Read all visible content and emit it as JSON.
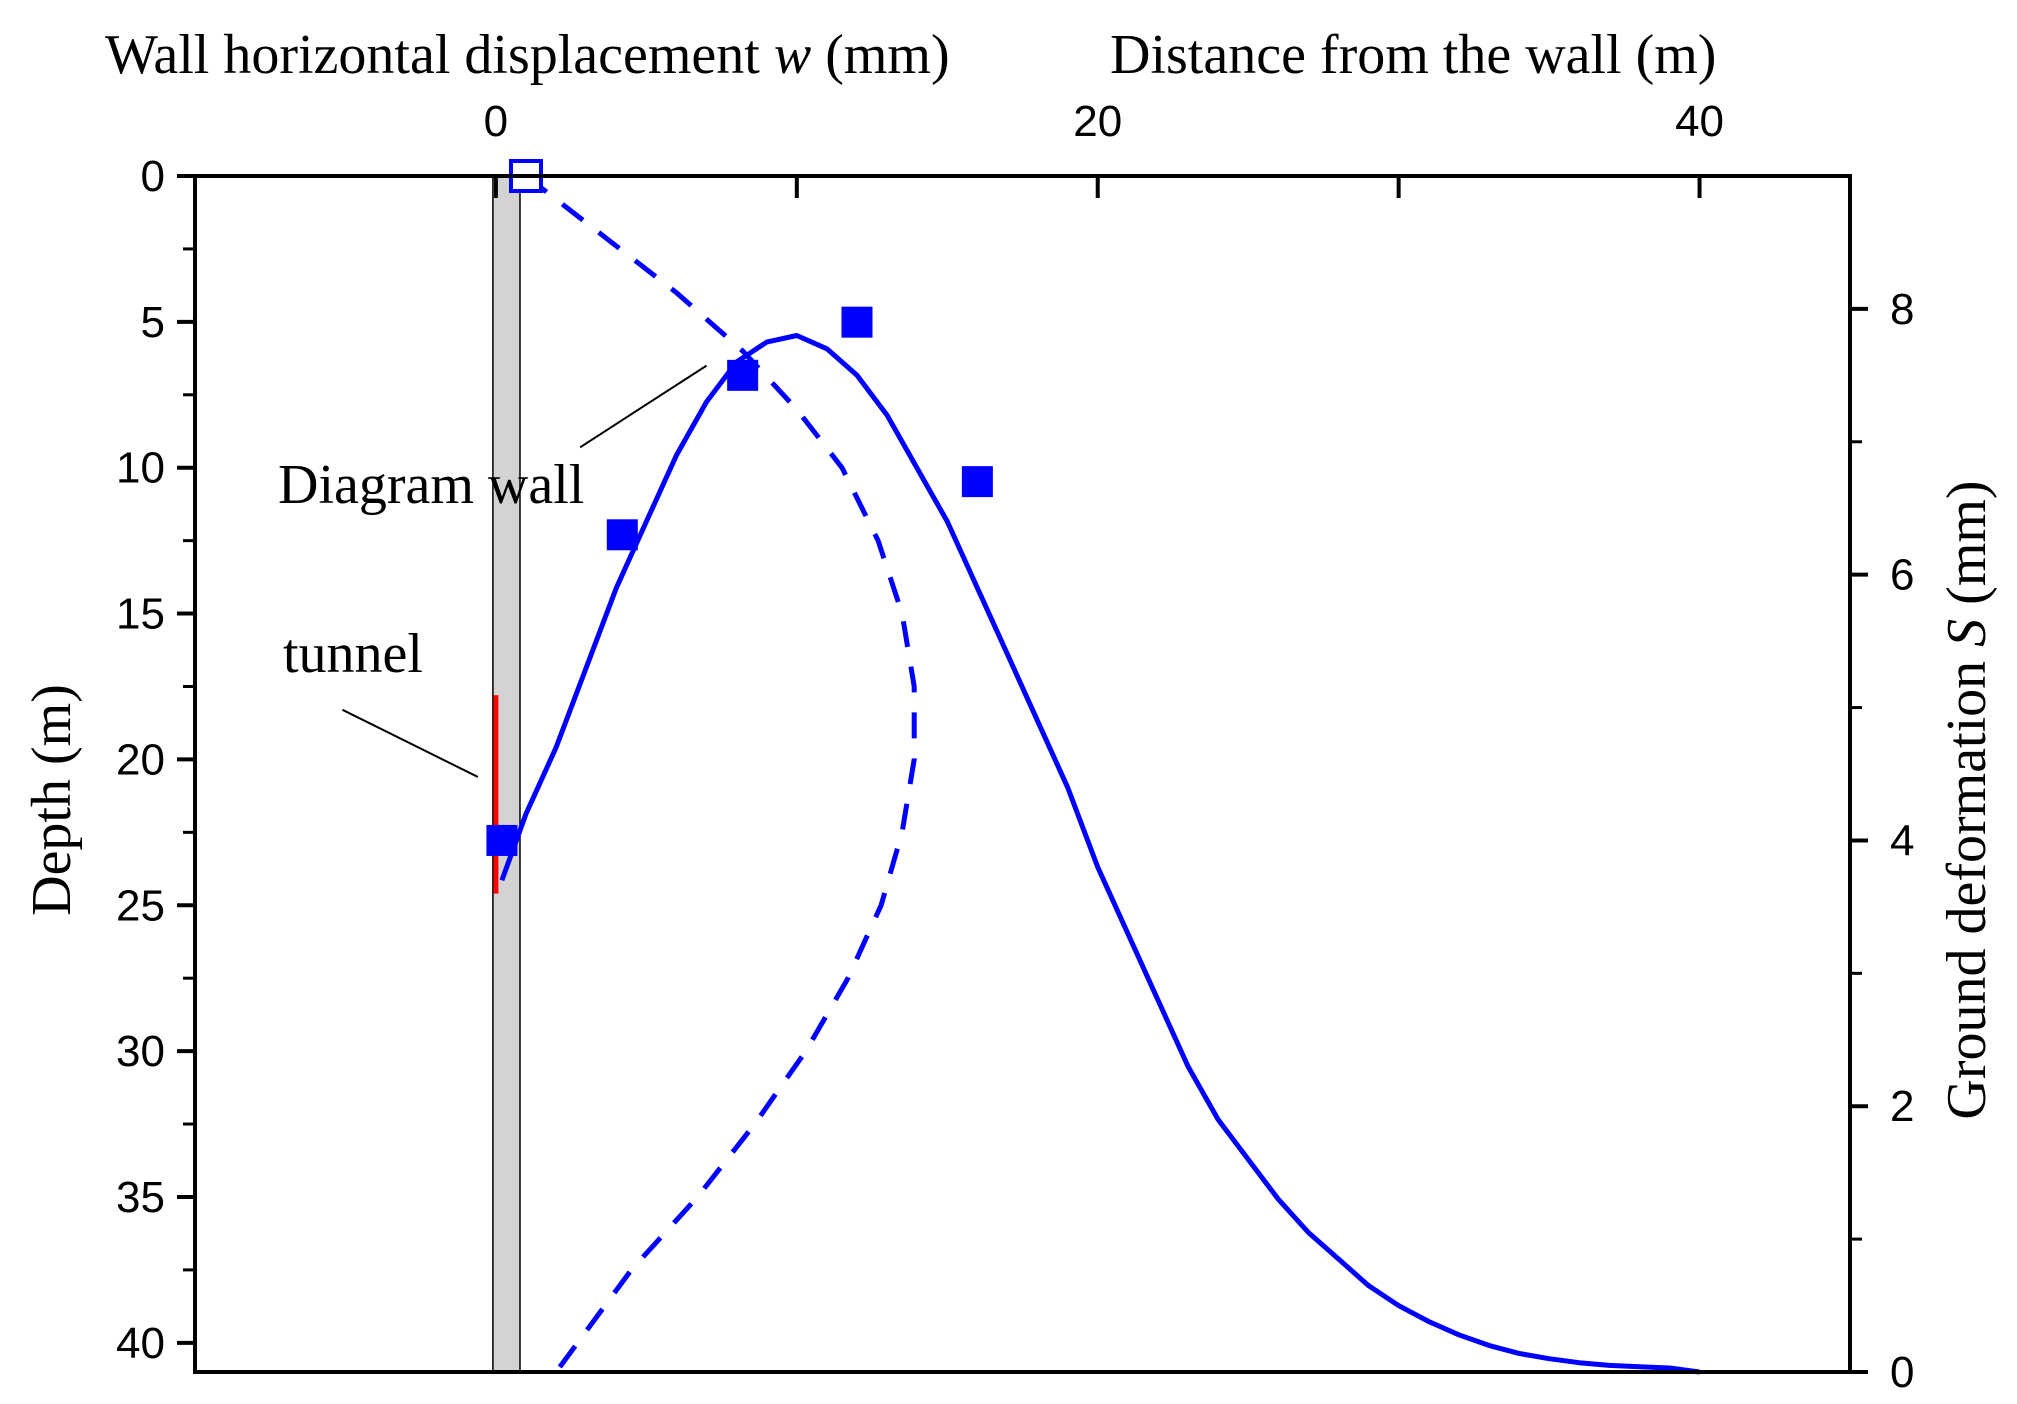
{
  "chart_data": {
    "type": "line",
    "title": "",
    "top_axis_left_label_prefix": "Wall horizontal displacement ",
    "top_axis_left_label_var": "w",
    "top_axis_left_label_suffix": " (mm)",
    "top_axis_right_label": "Distance from the wall  (m)",
    "left_axis_label": "Depth (m)",
    "right_axis_label_prefix": "Ground deformation ",
    "right_axis_label_var": "S",
    "right_axis_label_suffix": " (mm)",
    "x_top": {
      "range": [
        -10,
        45
      ],
      "ticks": [
        0,
        20,
        40
      ],
      "minor_ticks": [
        10,
        30
      ]
    },
    "y_left": {
      "range": [
        0,
        41
      ],
      "inverted": true,
      "ticks": [
        0,
        5,
        10,
        15,
        20,
        25,
        30,
        35,
        40
      ]
    },
    "y_right": {
      "range": [
        0,
        9
      ],
      "ticks": [
        0,
        2,
        4,
        6,
        8
      ]
    },
    "series": [
      {
        "name": "",
        "style": "solid",
        "color": "#0000ff",
        "axes": "distance-vs-ground-deformation",
        "x": [
          0.2,
          1.0,
          2.0,
          3.0,
          4.0,
          5.0,
          6.0,
          7.0,
          8.0,
          9.0,
          10.0,
          11.0,
          12.0,
          13.0,
          14.0,
          15.0,
          16.0,
          17.0,
          18.0,
          19.0,
          20.0,
          21.0,
          22.0,
          23.0,
          24.0,
          25.0,
          26.0,
          27.0,
          28.0,
          29.0,
          30.0,
          31.0,
          32.0,
          33.0,
          34.0,
          35.0,
          36.0,
          37.0,
          38.0,
          39.0,
          40.0
        ],
        "y": [
          3.7,
          4.2,
          4.7,
          5.3,
          5.9,
          6.4,
          6.9,
          7.3,
          7.6,
          7.75,
          7.8,
          7.7,
          7.5,
          7.2,
          6.8,
          6.4,
          5.9,
          5.4,
          4.9,
          4.4,
          3.8,
          3.3,
          2.8,
          2.3,
          1.9,
          1.6,
          1.3,
          1.05,
          0.85,
          0.65,
          0.5,
          0.38,
          0.28,
          0.2,
          0.14,
          0.1,
          0.07,
          0.05,
          0.04,
          0.03,
          0.0
        ]
      },
      {
        "name": "",
        "style": "dashed",
        "color": "#0000ff",
        "axes": "wall-displacement-vs-depth",
        "x": [
          1.0,
          3.5,
          6.0,
          8.2,
          10.0,
          11.5,
          12.7,
          13.5,
          13.9,
          13.9,
          13.5,
          12.8,
          11.7,
          10.3,
          8.6,
          6.7,
          4.5,
          2.0
        ],
        "y": [
          0,
          2,
          4,
          6,
          8,
          10,
          12.5,
          15,
          17.5,
          20,
          22.5,
          25,
          27.5,
          30,
          32.5,
          35,
          37.5,
          41
        ]
      }
    ],
    "markers": [
      {
        "x": 0.2,
        "y": 4.0,
        "filled": true,
        "axes": "distance-vs-ground-deformation"
      },
      {
        "x": 4.2,
        "y": 6.3,
        "filled": true,
        "axes": "distance-vs-ground-deformation"
      },
      {
        "x": 8.2,
        "y": 7.5,
        "filled": true,
        "axes": "distance-vs-ground-deformation"
      },
      {
        "x": 12.0,
        "y": 7.9,
        "filled": true,
        "axes": "distance-vs-ground-deformation"
      },
      {
        "x": 16.0,
        "y": 6.7,
        "filled": true,
        "axes": "distance-vs-ground-deformation"
      },
      {
        "x": 1.0,
        "y": 0,
        "filled": false,
        "axes": "wall-displacement-vs-depth"
      }
    ],
    "wall": {
      "x_from": -0.1,
      "x_to": 0.8,
      "depth_from": 0,
      "depth_to": 41,
      "color": "#d3d3d3"
    },
    "tunnel": {
      "x": 0.0,
      "depth_from": 17.8,
      "depth_to": 24.6,
      "color": "#ff0000"
    },
    "annotations": [
      {
        "text": "Diagram wall",
        "leader_from": {
          "x": 2.8,
          "depth": 9.3
        },
        "leader_to": {
          "x": 7.0,
          "depth": 6.5
        }
      },
      {
        "text": "tunnel",
        "leader_from": {
          "x": -5.1,
          "depth": 18.3
        },
        "leader_to": {
          "x": -0.6,
          "depth": 20.6
        }
      }
    ],
    "legend": "none",
    "grid": false
  }
}
